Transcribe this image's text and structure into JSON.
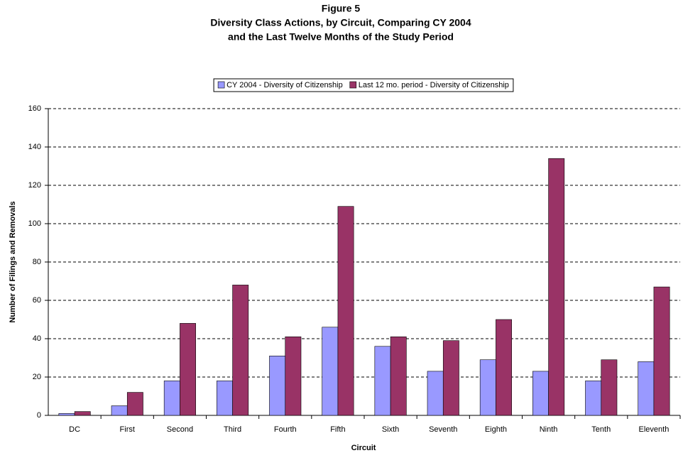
{
  "chart_data": {
    "type": "bar",
    "title": [
      "Figure 5",
      "Diversity Class Actions, by Circuit, Comparing CY 2004",
      "and the Last Twelve Months of the Study Period"
    ],
    "x_label": "Circuit",
    "y_label": "Number of Filings and Removals",
    "categories": [
      "DC",
      "First",
      "Second",
      "Third",
      "Fourth",
      "Fifth",
      "Sixth",
      "Seventh",
      "Eighth",
      "Ninth",
      "Tenth",
      "Eleventh"
    ],
    "series": [
      {
        "name": "CY 2004 - Diversity of Citizenship",
        "color": "#9999ff",
        "values": [
          1,
          5,
          18,
          18,
          31,
          46,
          36,
          23,
          29,
          23,
          18,
          28
        ]
      },
      {
        "name": "Last 12 mo. period - Diversity of Citizenship",
        "color": "#993366",
        "values": [
          2,
          12,
          48,
          68,
          41,
          109,
          41,
          39,
          50,
          134,
          29,
          67
        ]
      }
    ],
    "ylim": [
      0,
      160
    ],
    "yticks": [
      0,
      20,
      40,
      60,
      80,
      100,
      120,
      140,
      160
    ],
    "grid": true,
    "legend": "top"
  }
}
